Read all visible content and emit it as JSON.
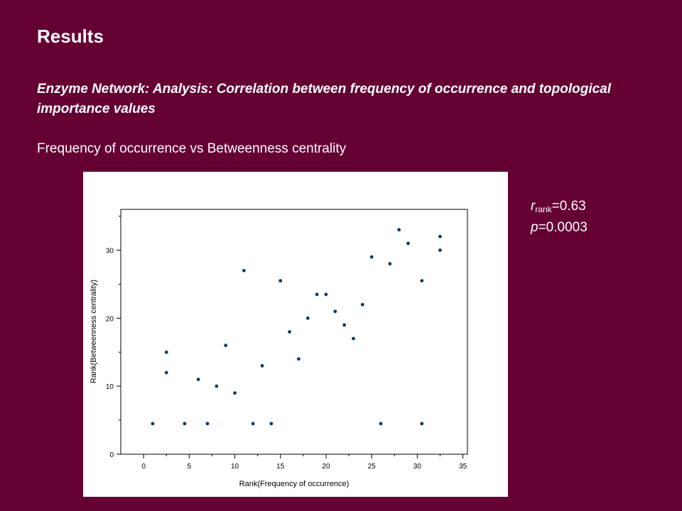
{
  "slide": {
    "title": "Results",
    "subtitle": "Enzyme Network: Analysis: Correlation between frequency of occurrence and topological importance values",
    "caption": "Frequency of occurrence vs Betweenness centrality"
  },
  "stats": {
    "r_symbol": "r",
    "r_subscript": "rank",
    "r_value": "=0.63",
    "p_symbol": "p",
    "p_value": "=0.0003"
  },
  "colors": {
    "background": "#650033",
    "point": "#0d3a63"
  },
  "chart_data": {
    "type": "scatter",
    "xlabel": "Rank(Frequency of occurrence)",
    "ylabel": "Rank(Betweenness centrality)",
    "xlim": [
      -2.5,
      35.5
    ],
    "ylim": [
      0,
      36
    ],
    "xticks": [
      0,
      5,
      10,
      15,
      20,
      25,
      30,
      35
    ],
    "yticks": [
      0,
      10,
      20,
      30
    ],
    "grid": false,
    "points": [
      {
        "x": 1,
        "y": 4.5
      },
      {
        "x": 2.5,
        "y": 15
      },
      {
        "x": 2.5,
        "y": 12
      },
      {
        "x": 4.5,
        "y": 4.5
      },
      {
        "x": 6,
        "y": 11
      },
      {
        "x": 7,
        "y": 4.5
      },
      {
        "x": 8,
        "y": 10
      },
      {
        "x": 9,
        "y": 16
      },
      {
        "x": 10,
        "y": 9
      },
      {
        "x": 11,
        "y": 27
      },
      {
        "x": 12,
        "y": 4.5
      },
      {
        "x": 13,
        "y": 13
      },
      {
        "x": 14,
        "y": 4.5
      },
      {
        "x": 15,
        "y": 25.5
      },
      {
        "x": 16,
        "y": 18
      },
      {
        "x": 17,
        "y": 14
      },
      {
        "x": 18,
        "y": 20
      },
      {
        "x": 19,
        "y": 23.5
      },
      {
        "x": 20,
        "y": 23.5
      },
      {
        "x": 21,
        "y": 21
      },
      {
        "x": 22,
        "y": 19
      },
      {
        "x": 23,
        "y": 17
      },
      {
        "x": 24,
        "y": 22
      },
      {
        "x": 25,
        "y": 29
      },
      {
        "x": 26,
        "y": 4.5
      },
      {
        "x": 27,
        "y": 28
      },
      {
        "x": 28,
        "y": 33
      },
      {
        "x": 29,
        "y": 31
      },
      {
        "x": 30.5,
        "y": 25.5
      },
      {
        "x": 30.5,
        "y": 4.5
      },
      {
        "x": 32.5,
        "y": 32
      },
      {
        "x": 32.5,
        "y": 30
      }
    ]
  }
}
